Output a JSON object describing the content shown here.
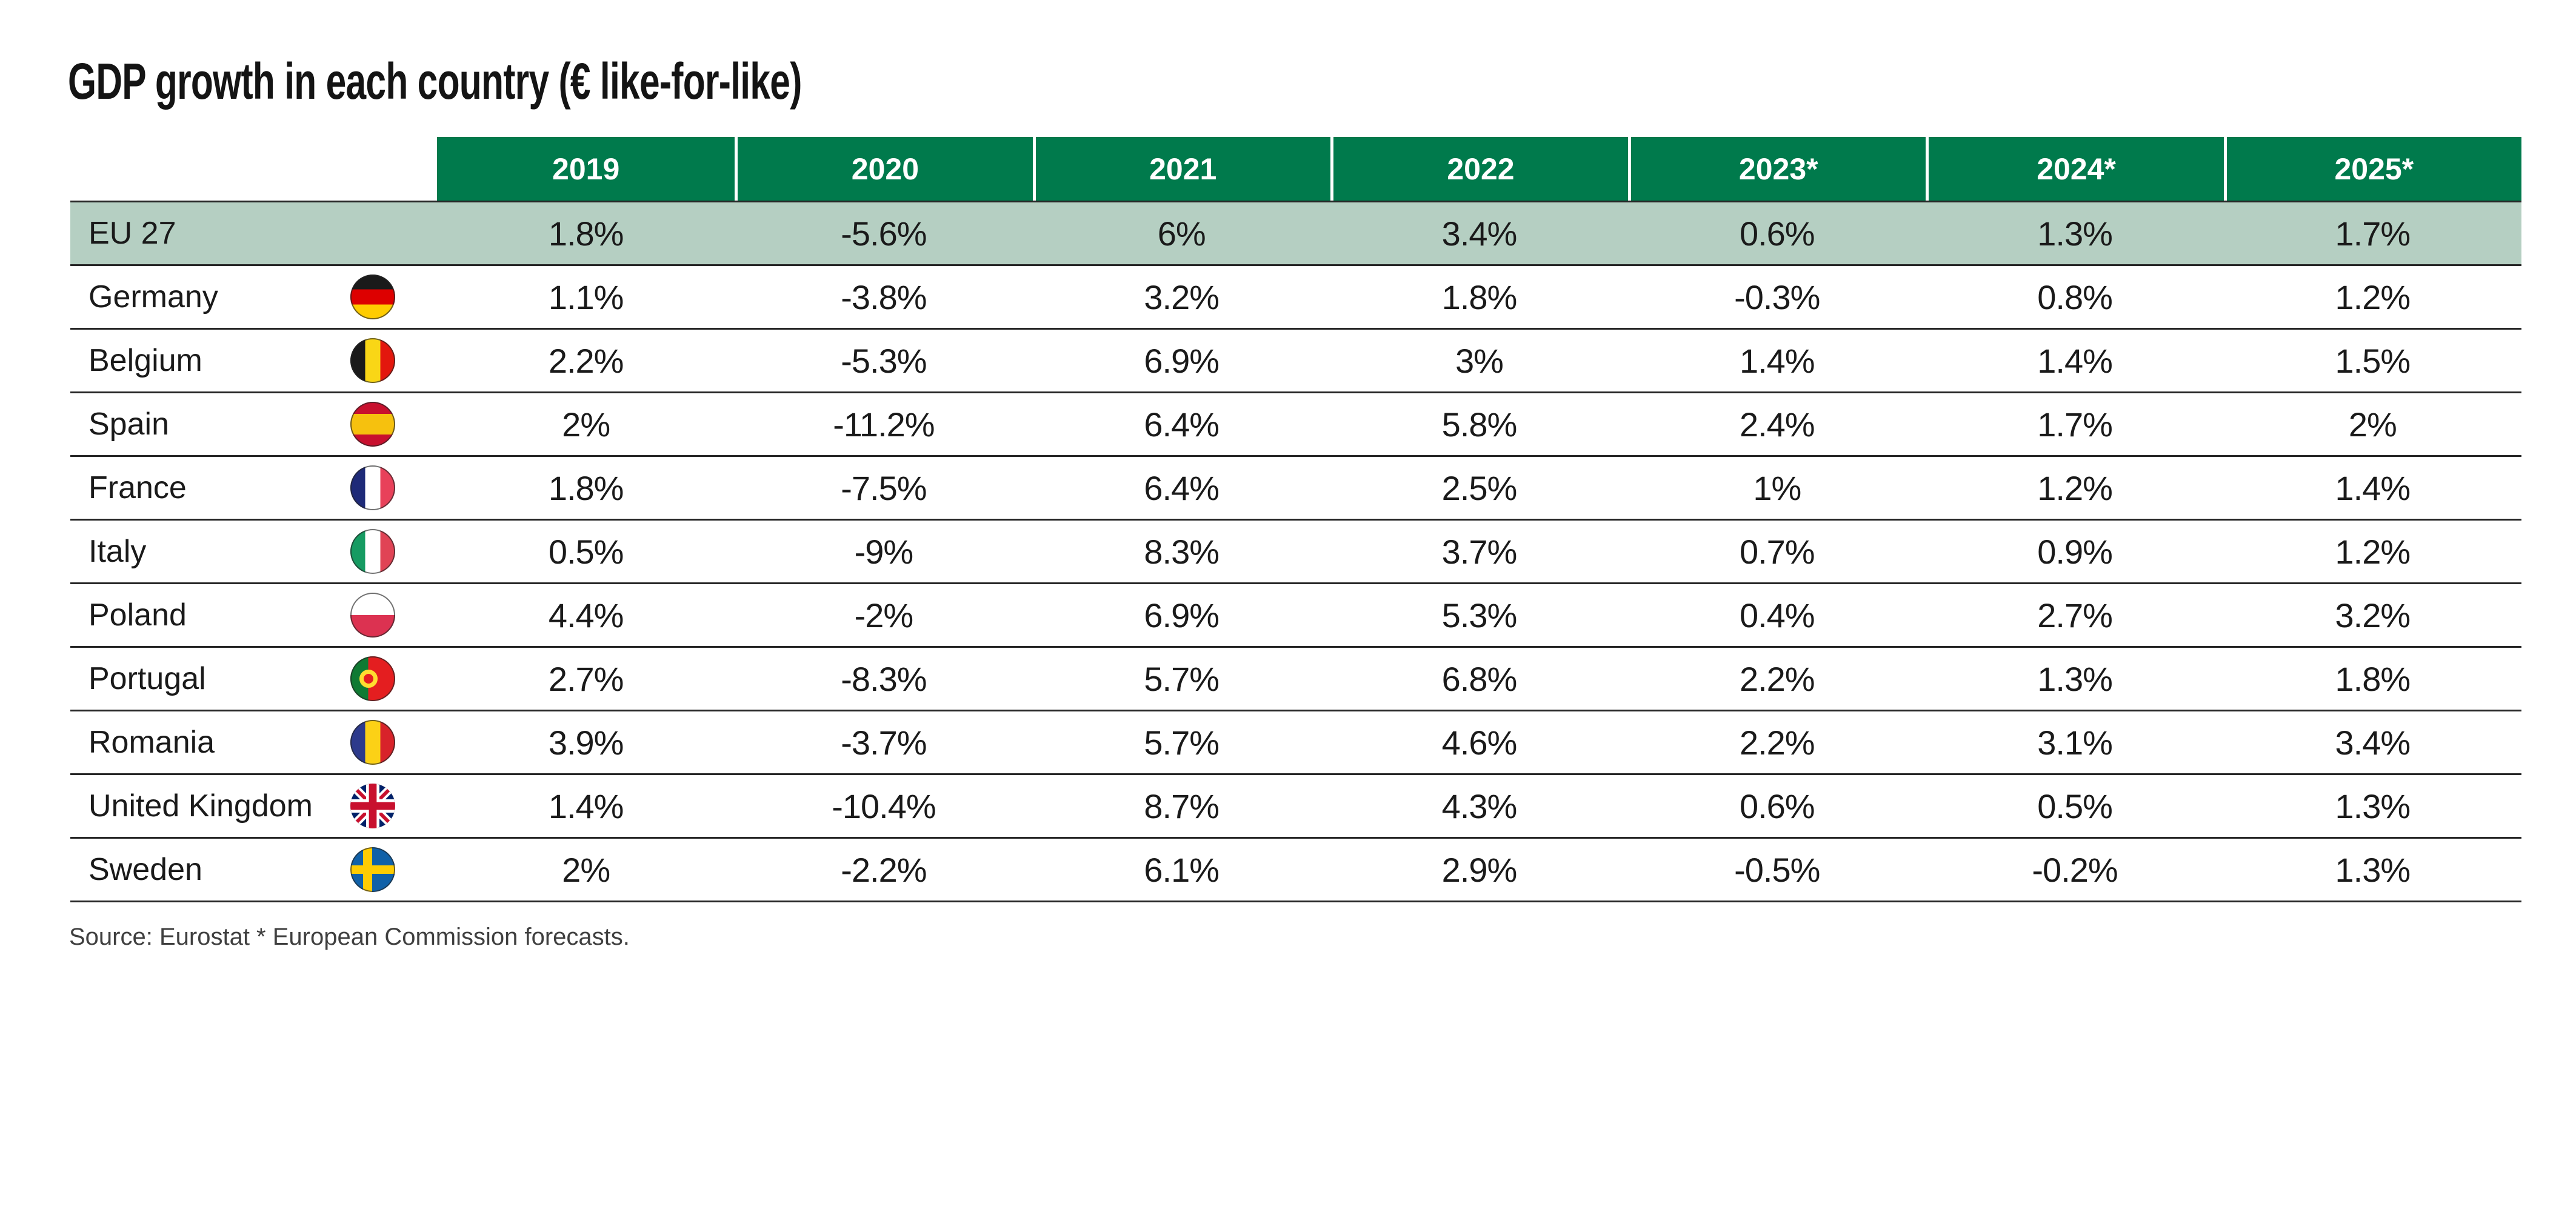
{
  "title": "GDP growth in each country (€ like-for-like)",
  "source_note": "Source: Eurostat * European Commission forecasts.",
  "colors": {
    "header_green": "#007a4c",
    "eu_row_green": "#b5cfc2",
    "row_border": "#262626",
    "header_text": "#ffffff",
    "body_text": "#1a1a1a",
    "source_text": "#3f3f3f"
  },
  "chart_data": {
    "type": "table",
    "title": "GDP growth in each country (€ like-for-like)",
    "columns": [
      "2019",
      "2020",
      "2021",
      "2022",
      "2023*",
      "2024*",
      "2025*"
    ],
    "rows": [
      {
        "country": "EU 27",
        "flag": null,
        "highlight": true,
        "values": [
          "1.8%",
          "-5.6%",
          "6%",
          "3.4%",
          "0.6%",
          "1.3%",
          "1.7%"
        ]
      },
      {
        "country": "Germany",
        "flag": "germany",
        "highlight": false,
        "values": [
          "1.1%",
          "-3.8%",
          "3.2%",
          "1.8%",
          "-0.3%",
          "0.8%",
          "1.2%"
        ]
      },
      {
        "country": "Belgium",
        "flag": "belgium",
        "highlight": false,
        "values": [
          "2.2%",
          "-5.3%",
          "6.9%",
          "3%",
          "1.4%",
          "1.4%",
          "1.5%"
        ]
      },
      {
        "country": "Spain",
        "flag": "spain",
        "highlight": false,
        "values": [
          "2%",
          "-11.2%",
          "6.4%",
          "5.8%",
          "2.4%",
          "1.7%",
          "2%"
        ]
      },
      {
        "country": "France",
        "flag": "france",
        "highlight": false,
        "values": [
          "1.8%",
          "-7.5%",
          "6.4%",
          "2.5%",
          "1%",
          "1.2%",
          "1.4%"
        ]
      },
      {
        "country": "Italy",
        "flag": "italy",
        "highlight": false,
        "values": [
          "0.5%",
          "-9%",
          "8.3%",
          "3.7%",
          "0.7%",
          "0.9%",
          "1.2%"
        ]
      },
      {
        "country": "Poland",
        "flag": "poland",
        "highlight": false,
        "values": [
          "4.4%",
          "-2%",
          "6.9%",
          "5.3%",
          "0.4%",
          "2.7%",
          "3.2%"
        ]
      },
      {
        "country": "Portugal",
        "flag": "portugal",
        "highlight": false,
        "values": [
          "2.7%",
          "-8.3%",
          "5.7%",
          "6.8%",
          "2.2%",
          "1.3%",
          "1.8%"
        ]
      },
      {
        "country": "Romania",
        "flag": "romania",
        "highlight": false,
        "values": [
          "3.9%",
          "-3.7%",
          "5.7%",
          "4.6%",
          "2.2%",
          "3.1%",
          "3.4%"
        ]
      },
      {
        "country": "United Kingdom",
        "flag": "uk",
        "highlight": false,
        "values": [
          "1.4%",
          "-10.4%",
          "8.7%",
          "4.3%",
          "0.6%",
          "0.5%",
          "1.3%"
        ]
      },
      {
        "country": "Sweden",
        "flag": "sweden",
        "highlight": false,
        "values": [
          "2%",
          "-2.2%",
          "6.1%",
          "2.9%",
          "-0.5%",
          "-0.2%",
          "1.3%"
        ]
      }
    ],
    "footnote": "Source: Eurostat * European Commission forecasts.",
    "legend_position": "none",
    "grid": "horizontal-row-separators-only"
  }
}
